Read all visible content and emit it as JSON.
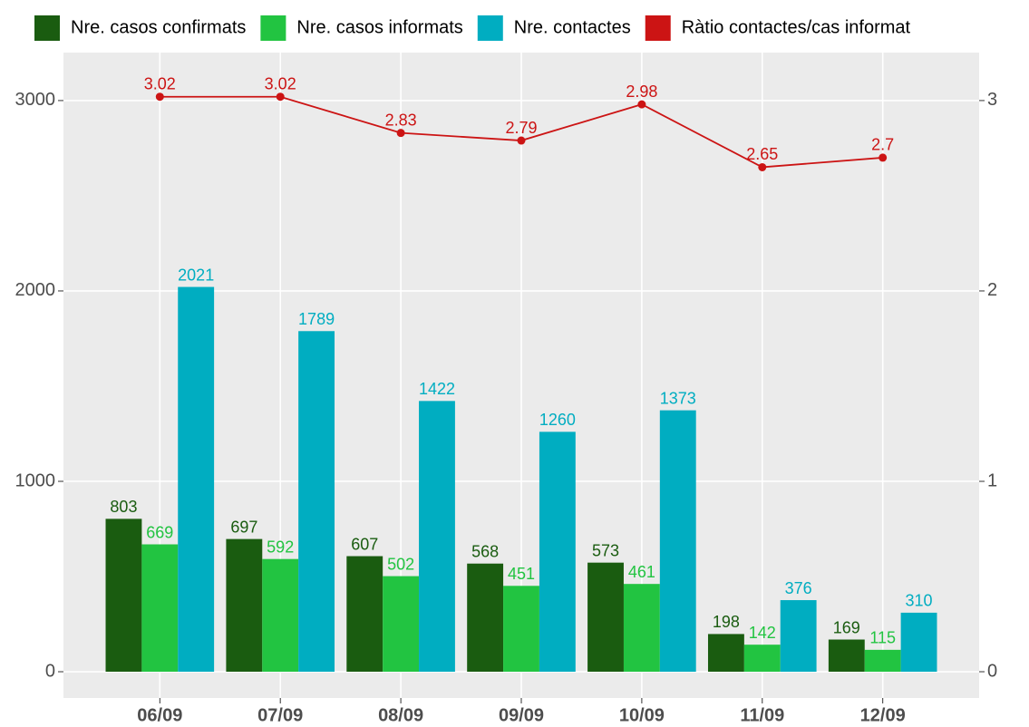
{
  "chart_data": {
    "type": "bar",
    "categories": [
      "06/09",
      "07/09",
      "08/09",
      "09/09",
      "10/09",
      "11/09",
      "12/09"
    ],
    "series": [
      {
        "name": "Nre. casos confirmats",
        "color": "#1a5c10",
        "values": [
          803,
          697,
          607,
          568,
          573,
          198,
          169
        ]
      },
      {
        "name": "Nre. casos informats",
        "color": "#22c441",
        "values": [
          669,
          592,
          502,
          451,
          461,
          142,
          115
        ]
      },
      {
        "name": "Nre. contactes",
        "color": "#00adc1",
        "values": [
          2021,
          1789,
          1422,
          1260,
          1373,
          376,
          310
        ]
      },
      {
        "name": "Ràtio contactes/cas informat",
        "color": "#cc1414",
        "type": "line",
        "axis": "y2",
        "values": [
          3.02,
          3.02,
          2.83,
          2.79,
          2.98,
          2.65,
          2.7
        ]
      }
    ],
    "ylim": [
      -138,
      3252
    ],
    "yticks": [
      0,
      1000,
      2000,
      3000
    ],
    "y2lim": [
      -0.138,
      3.252
    ],
    "y2ticks": [
      0,
      1,
      2,
      3
    ],
    "grid": true,
    "legend": "top"
  }
}
